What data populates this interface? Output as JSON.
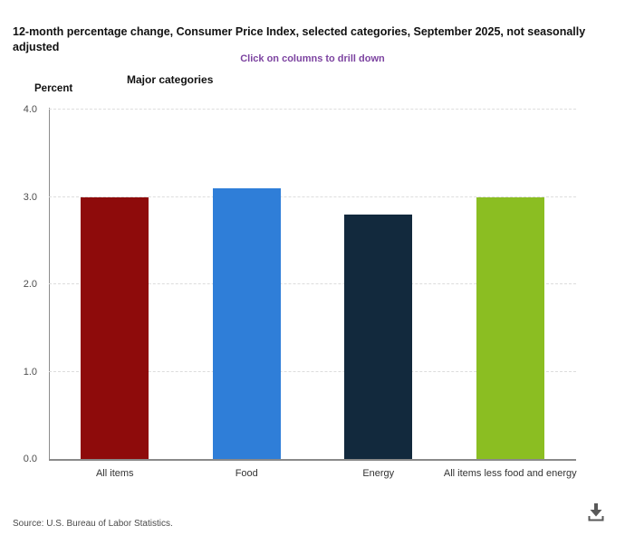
{
  "header": {
    "title": "12-month percentage change, Consumer Price Index, selected categories, September 2025, not seasonally adjusted",
    "drilldown_hint": "Click on columns to drill down",
    "chart_label": "Major categories",
    "y_axis_title": "Percent"
  },
  "footer": {
    "source": "Source: U.S. Bureau of Labor Statistics."
  },
  "icons": {
    "download": "download-icon"
  },
  "colors": {
    "title_text": "#111111",
    "drilldown_hint_text": "#7c43a0",
    "gridline": "#dddddd",
    "axis_line": "#8a8a8a",
    "tick_text": "#4d4d4d",
    "category_text": "#333333",
    "download_icon": "#595959"
  },
  "chart_data": {
    "type": "bar",
    "title": "Major categories",
    "categories": [
      "All items",
      "Food",
      "Energy",
      "All items less food and energy"
    ],
    "values": [
      3.0,
      3.1,
      2.8,
      3.0
    ],
    "bar_colors": [
      "#8e0b0b",
      "#2f7ed8",
      "#12293d",
      "#8bbe22"
    ],
    "xlabel": "",
    "ylabel": "Percent",
    "ylim": [
      0,
      4
    ],
    "yticks": [
      0.0,
      1.0,
      2.0,
      3.0,
      4.0
    ],
    "grid": "horizontal-dashed",
    "legend": "none"
  }
}
